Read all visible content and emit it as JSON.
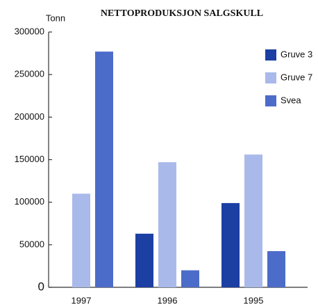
{
  "chart_data": {
    "type": "bar",
    "title": "NETTOPRODUKSJON SALGSKULL",
    "y_label": "Tonn",
    "categories": [
      "1997",
      "1996",
      "1995"
    ],
    "series": [
      {
        "name": "Gruve 3",
        "color": "#1c3fa3",
        "values": [
          null,
          63000,
          99000
        ]
      },
      {
        "name": "Gruve 7",
        "color": "#a9b9ea",
        "values": [
          110000,
          147000,
          156000
        ]
      },
      {
        "name": "Svea",
        "color": "#4c6cc9",
        "values": [
          277000,
          20000,
          42500
        ]
      }
    ],
    "ylim": [
      0,
      300000
    ],
    "yticks": [
      0,
      50000,
      100000,
      150000,
      200000,
      250000,
      300000
    ],
    "legend": "upper right",
    "grid": false
  }
}
